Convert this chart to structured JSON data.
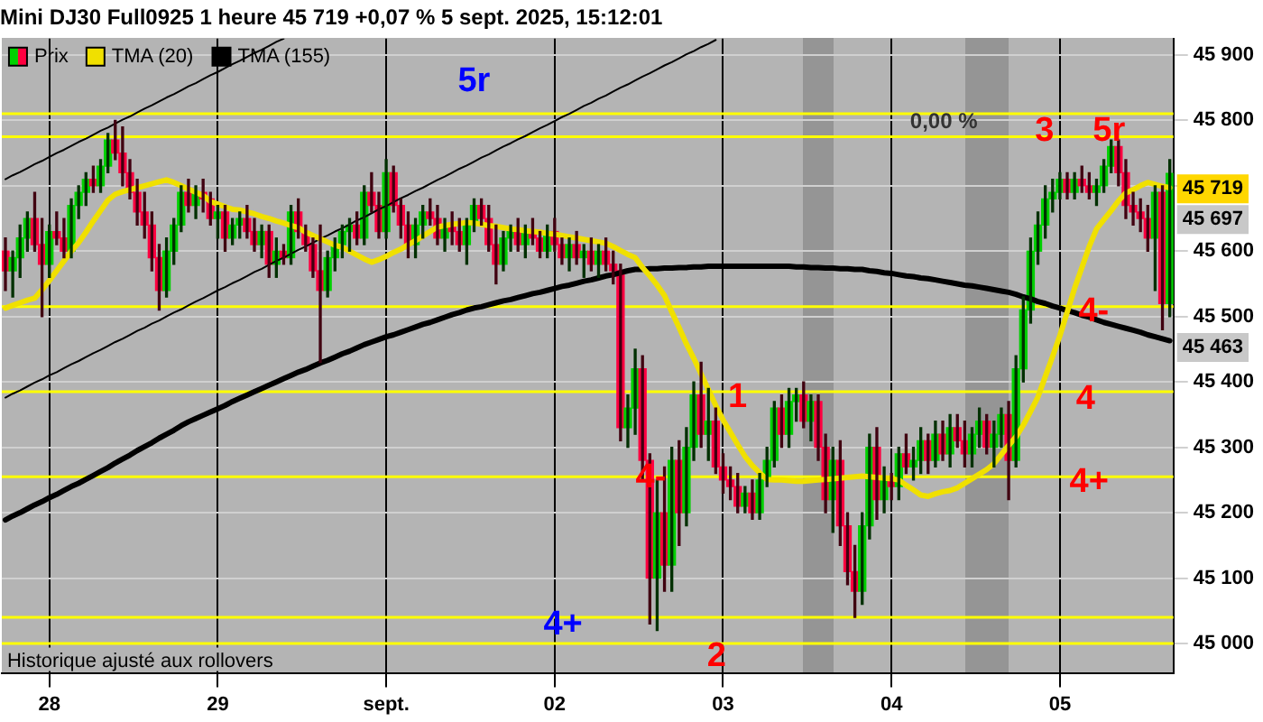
{
  "chart_data": {
    "type": "candlestick",
    "title": "Mini DJ30 Full0925 1 heure 45 719 +0,07 % 5 sept. 2025, 15:12:01",
    "categories": [
      null,
      null,
      null,
      null,
      null,
      null,
      "28",
      null,
      null,
      null,
      null,
      null,
      null,
      null,
      null,
      null,
      null,
      null,
      null,
      null,
      null,
      null,
      null,
      null,
      null,
      null,
      null,
      null,
      null,
      "29",
      null,
      null,
      null,
      null,
      null,
      null,
      null,
      null,
      null,
      null,
      null,
      null,
      null,
      null,
      null,
      null,
      null,
      null,
      null,
      null,
      null,
      null,
      "sept.",
      null,
      null,
      null,
      null,
      null,
      null,
      null,
      null,
      null,
      null,
      null,
      null,
      null,
      null,
      null,
      null,
      null,
      null,
      null,
      null,
      null,
      null,
      "02",
      null,
      null,
      null,
      null,
      null,
      null,
      null,
      null,
      null,
      null,
      null,
      null,
      null,
      null,
      null,
      null,
      null,
      null,
      null,
      null,
      null,
      null,
      "03",
      null,
      null,
      null,
      null,
      null,
      null,
      null,
      null,
      null,
      null,
      null,
      null,
      null,
      null,
      null,
      null,
      null,
      null,
      null,
      null,
      null,
      null,
      "04",
      null,
      null,
      null,
      null,
      null,
      null,
      null,
      null,
      null,
      null,
      null,
      null,
      null,
      null,
      null,
      null,
      null,
      null,
      null,
      null,
      null,
      null,
      "05",
      null,
      null,
      null,
      null,
      null,
      null,
      null,
      null,
      null,
      null,
      null,
      null,
      null,
      null,
      null
    ],
    "ylim": [
      44955,
      45925
    ],
    "yticks": [
      {
        "value": 45000,
        "label": "45 000"
      },
      {
        "value": 45100,
        "label": "45 100"
      },
      {
        "value": 45200,
        "label": "45 200"
      },
      {
        "value": 45300,
        "label": "45 300"
      },
      {
        "value": 45400,
        "label": "45 400"
      },
      {
        "value": 45500,
        "label": "45 500"
      },
      {
        "value": 45600,
        "label": "45 600"
      },
      {
        "value": 45700,
        "label": null
      },
      {
        "value": 45800,
        "label": "45 800"
      },
      {
        "value": 45900,
        "label": "45 900"
      }
    ],
    "grid": true,
    "legend": "top left",
    "marker": "none",
    "series": [
      {
        "name": "Prix",
        "ohlc": [
          [
            45600,
            45620,
            45540,
            45570
          ],
          [
            45570,
            45600,
            45530,
            45590
          ],
          [
            45590,
            45640,
            45560,
            45620
          ],
          [
            45620,
            45660,
            45600,
            45650
          ],
          [
            45650,
            45690,
            45600,
            45610
          ],
          [
            45610,
            45650,
            45500,
            45580
          ],
          [
            45580,
            45640,
            45560,
            45630
          ],
          [
            45630,
            45660,
            45610,
            45620
          ],
          [
            45620,
            45650,
            45590,
            45600
          ],
          [
            45600,
            45680,
            45590,
            45670
          ],
          [
            45670,
            45700,
            45650,
            45690
          ],
          [
            45690,
            45720,
            45670,
            45710
          ],
          [
            45710,
            45730,
            45690,
            45700
          ],
          [
            45700,
            45740,
            45690,
            45730
          ],
          [
            45730,
            45780,
            45720,
            45770
          ],
          [
            45770,
            45800,
            45740,
            45750
          ],
          [
            45750,
            45790,
            45700,
            45720
          ],
          [
            45720,
            45740,
            45680,
            45690
          ],
          [
            45690,
            45710,
            45640,
            45660
          ],
          [
            45660,
            45690,
            45620,
            45640
          ],
          [
            45640,
            45660,
            45570,
            45590
          ],
          [
            45590,
            45610,
            45510,
            45540
          ],
          [
            45540,
            45620,
            45530,
            45600
          ],
          [
            45600,
            45650,
            45580,
            45640
          ],
          [
            45640,
            45700,
            45630,
            45690
          ],
          [
            45690,
            45710,
            45660,
            45670
          ],
          [
            45670,
            45700,
            45650,
            45690
          ],
          [
            45690,
            45710,
            45660,
            45680
          ],
          [
            45680,
            45690,
            45640,
            45650
          ],
          [
            45650,
            45670,
            45620,
            45660
          ],
          [
            45660,
            45670,
            45600,
            45620
          ],
          [
            45620,
            45650,
            45610,
            45640
          ],
          [
            45640,
            45660,
            45620,
            45650
          ],
          [
            45650,
            45670,
            45620,
            45630
          ],
          [
            45630,
            45650,
            45600,
            45610
          ],
          [
            45610,
            45640,
            45590,
            45630
          ],
          [
            45630,
            45640,
            45560,
            45580
          ],
          [
            45580,
            45620,
            45560,
            45600
          ],
          [
            45600,
            45610,
            45580,
            45590
          ],
          [
            45590,
            45670,
            45580,
            45660
          ],
          [
            45660,
            45680,
            45620,
            45630
          ],
          [
            45630,
            45640,
            45600,
            45610
          ],
          [
            45610,
            45620,
            45560,
            45570
          ],
          [
            45570,
            45640,
            45430,
            45540
          ],
          [
            45540,
            45600,
            45530,
            45590
          ],
          [
            45590,
            45620,
            45570,
            45610
          ],
          [
            45610,
            45640,
            45590,
            45630
          ],
          [
            45630,
            45650,
            45600,
            45640
          ],
          [
            45640,
            45660,
            45610,
            45620
          ],
          [
            45620,
            45700,
            45610,
            45690
          ],
          [
            45690,
            45720,
            45660,
            45670
          ],
          [
            45670,
            45690,
            45620,
            45630
          ],
          [
            45630,
            45740,
            45620,
            45720
          ],
          [
            45720,
            45730,
            45660,
            45670
          ],
          [
            45670,
            45680,
            45620,
            45640
          ],
          [
            45640,
            45660,
            45590,
            45610
          ],
          [
            45610,
            45650,
            45590,
            45640
          ],
          [
            45640,
            45670,
            45620,
            45660
          ],
          [
            45660,
            45680,
            45640,
            45650
          ],
          [
            45650,
            45670,
            45610,
            45620
          ],
          [
            45620,
            45650,
            45600,
            45640
          ],
          [
            45640,
            45660,
            45610,
            45630
          ],
          [
            45630,
            45650,
            45600,
            45610
          ],
          [
            45610,
            45650,
            45580,
            45640
          ],
          [
            45640,
            45680,
            45630,
            45670
          ],
          [
            45670,
            45680,
            45640,
            45650
          ],
          [
            45650,
            45670,
            45600,
            45610
          ],
          [
            45610,
            45640,
            45550,
            45580
          ],
          [
            45580,
            45630,
            45570,
            45620
          ],
          [
            45620,
            45640,
            45600,
            45630
          ],
          [
            45630,
            45650,
            45600,
            45610
          ],
          [
            45610,
            45640,
            45590,
            45630
          ],
          [
            45630,
            45650,
            45610,
            45620
          ],
          [
            45620,
            45630,
            45590,
            45600
          ],
          [
            45600,
            45640,
            45590,
            45630
          ],
          [
            45630,
            45650,
            45600,
            45610
          ],
          [
            45610,
            45620,
            45580,
            45590
          ],
          [
            45590,
            45620,
            45570,
            45610
          ],
          [
            45610,
            45630,
            45580,
            45590
          ],
          [
            45590,
            45610,
            45560,
            45600
          ],
          [
            45600,
            45620,
            45570,
            45580
          ],
          [
            45580,
            45610,
            45560,
            45600
          ],
          [
            45600,
            45620,
            45570,
            45580
          ],
          [
            45580,
            45600,
            45550,
            45570
          ],
          [
            45570,
            45580,
            45310,
            45330
          ],
          [
            45330,
            45380,
            45300,
            45360
          ],
          [
            45360,
            45450,
            45320,
            45420
          ],
          [
            45420,
            45440,
            45250,
            45280
          ],
          [
            45280,
            45290,
            45030,
            45100
          ],
          [
            45100,
            45250,
            45020,
            45200
          ],
          [
            45200,
            45270,
            45080,
            45120
          ],
          [
            45120,
            45300,
            45080,
            45280
          ],
          [
            45280,
            45310,
            45150,
            45200
          ],
          [
            45200,
            45330,
            45180,
            45300
          ],
          [
            45300,
            45400,
            45280,
            45380
          ],
          [
            45380,
            45430,
            45300,
            45320
          ],
          [
            45320,
            45390,
            45280,
            45340
          ],
          [
            45340,
            45360,
            45260,
            45270
          ],
          [
            45270,
            45290,
            45230,
            45250
          ],
          [
            45250,
            45270,
            45220,
            45240
          ],
          [
            45240,
            45260,
            45200,
            45210
          ],
          [
            45210,
            45240,
            45200,
            45230
          ],
          [
            45230,
            45250,
            45190,
            45200
          ],
          [
            45200,
            45260,
            45190,
            45250
          ],
          [
            45250,
            45300,
            45240,
            45280
          ],
          [
            45280,
            45370,
            45270,
            45360
          ],
          [
            45360,
            45380,
            45300,
            45320
          ],
          [
            45320,
            45390,
            45300,
            45370
          ],
          [
            45370,
            45390,
            45340,
            45380
          ],
          [
            45380,
            45400,
            45330,
            45340
          ],
          [
            45340,
            45380,
            45310,
            45370
          ],
          [
            45370,
            45380,
            45280,
            45300
          ],
          [
            45300,
            45320,
            45200,
            45220
          ],
          [
            45220,
            45300,
            45170,
            45280
          ],
          [
            45280,
            45310,
            45150,
            45180
          ],
          [
            45180,
            45200,
            45090,
            45110
          ],
          [
            45110,
            45150,
            45040,
            45080
          ],
          [
            45080,
            45200,
            45060,
            45180
          ],
          [
            45180,
            45320,
            45160,
            45300
          ],
          [
            45300,
            45330,
            45190,
            45220
          ],
          [
            45220,
            45270,
            45200,
            45250
          ],
          [
            45250,
            45260,
            45220,
            45240
          ],
          [
            45240,
            45300,
            45220,
            45290
          ],
          [
            45290,
            45320,
            45260,
            45270
          ],
          [
            45270,
            45300,
            45250,
            45280
          ],
          [
            45280,
            45330,
            45260,
            45310
          ],
          [
            45310,
            45320,
            45260,
            45280
          ],
          [
            45280,
            45340,
            45270,
            45320
          ],
          [
            45320,
            45340,
            45280,
            45290
          ],
          [
            45290,
            45350,
            45270,
            45330
          ],
          [
            45330,
            45350,
            45300,
            45310
          ],
          [
            45310,
            45340,
            45270,
            45290
          ],
          [
            45290,
            45330,
            45270,
            45320
          ],
          [
            45320,
            45360,
            45300,
            45340
          ],
          [
            45340,
            45350,
            45290,
            45300
          ],
          [
            45300,
            45340,
            45270,
            45320
          ],
          [
            45320,
            45360,
            45300,
            45350
          ],
          [
            45350,
            45370,
            45220,
            45280
          ],
          [
            45280,
            45440,
            45270,
            45420
          ],
          [
            45420,
            45530,
            45400,
            45510
          ],
          [
            45510,
            45620,
            45490,
            45600
          ],
          [
            45600,
            45660,
            45580,
            45640
          ],
          [
            45640,
            45700,
            45620,
            45680
          ],
          [
            45680,
            45710,
            45660,
            45690
          ],
          [
            45690,
            45720,
            45680,
            45710
          ],
          [
            45710,
            45720,
            45680,
            45690
          ],
          [
            45690,
            45720,
            45680,
            45710
          ],
          [
            45710,
            45730,
            45690,
            45700
          ],
          [
            45700,
            45720,
            45680,
            45690
          ],
          [
            45690,
            45710,
            45670,
            45700
          ],
          [
            45700,
            45740,
            45690,
            45730
          ],
          [
            45730,
            45770,
            45720,
            45760
          ],
          [
            45760,
            45770,
            45700,
            45720
          ],
          [
            45720,
            45740,
            45650,
            45670
          ],
          [
            45670,
            45690,
            45640,
            45660
          ],
          [
            45660,
            45680,
            45630,
            45650
          ],
          [
            45650,
            45670,
            45600,
            45620
          ],
          [
            45620,
            45700,
            45540,
            45690
          ],
          [
            45690,
            45700,
            45480,
            45520
          ],
          [
            45520,
            45740,
            45500,
            45719
          ]
        ]
      },
      {
        "name": "TMA (20)",
        "type": "line",
        "color": "#f0e000",
        "values": [
          45513,
          45517,
          45521,
          45525,
          45528,
          45541,
          45555,
          45570,
          45585,
          45600,
          45613,
          45629,
          45646,
          45662,
          45678,
          45687,
          45691,
          45694,
          45697,
          45700,
          45703,
          45706,
          45709,
          45705,
          45700,
          45695,
          45690,
          45685,
          45676,
          45672,
          45668,
          45664,
          45663,
          45660,
          45657,
          45653,
          45650,
          45646,
          45643,
          45639,
          45636,
          45629,
          45624,
          45619,
          45614,
          45609,
          45606,
          45600,
          45594,
          45588,
          45583,
          45587,
          45592,
          45598,
          45603,
          45610,
          45616,
          45623,
          45630,
          45637,
          45639,
          45641,
          45642,
          45644,
          45643,
          45641,
          45639,
          45638,
          45636,
          45634,
          45633,
          45631,
          45630,
          45629,
          45627,
          45626,
          45624,
          45622,
          45620,
          45618,
          45616,
          45614,
          45612,
          45607,
          45601,
          45595,
          45590,
          45575,
          45562,
          45548,
          45532,
          45507,
          45483,
          45458,
          45436,
          45412,
          45388,
          45364,
          45342,
          45323,
          45304,
          45286,
          45272,
          45261,
          45251,
          45250,
          45250,
          45249,
          45248,
          45248,
          45249,
          45250,
          45251,
          45252,
          45253,
          45254,
          45255,
          45256,
          45255,
          45254,
          45253,
          45252,
          45250,
          45242,
          45235,
          45227,
          45225,
          45229,
          45232,
          45234,
          45238,
          45245,
          45252,
          45259,
          45266,
          45275,
          45289,
          45303,
          45316,
          45334,
          45355,
          45377,
          45408,
          45439,
          45471,
          45507,
          45543,
          45575,
          45607,
          45634,
          45648,
          45662,
          45677,
          45689,
          45694,
          45700,
          45705,
          45702,
          45699,
          45697
        ]
      },
      {
        "name": "TMA (155)",
        "type": "line",
        "color": "#000000",
        "values": [
          45189,
          45195,
          45200,
          45206,
          45212,
          45217,
          45223,
          45228,
          45234,
          45240,
          45245,
          45251,
          45257,
          45263,
          45269,
          45276,
          45282,
          45288,
          45295,
          45301,
          45307,
          45314,
          45320,
          45326,
          45333,
          45339,
          45344,
          45349,
          45354,
          45359,
          45364,
          45370,
          45375,
          45380,
          45385,
          45390,
          45395,
          45400,
          45405,
          45410,
          45415,
          45419,
          45424,
          45429,
          45433,
          45438,
          45443,
          45447,
          45452,
          45457,
          45461,
          45465,
          45469,
          45472,
          45476,
          45480,
          45484,
          45488,
          45491,
          45495,
          45499,
          45503,
          45506,
          45510,
          45513,
          45515,
          45518,
          45521,
          45524,
          45526,
          45529,
          45532,
          45535,
          45537,
          45540,
          45543,
          45546,
          45548,
          45551,
          45554,
          45556,
          45559,
          45562,
          45564,
          45567,
          45570,
          45572,
          45572,
          45573,
          45573,
          45574,
          45574,
          45575,
          45575,
          45576,
          45576,
          45577,
          45577,
          45577,
          45577,
          45577,
          45577,
          45577,
          45577,
          45577,
          45577,
          45577,
          45577,
          45576,
          45576,
          45575,
          45575,
          45574,
          45574,
          45573,
          45573,
          45572,
          45572,
          45570,
          45569,
          45567,
          45566,
          45564,
          45562,
          45561,
          45559,
          45558,
          45556,
          45554,
          45552,
          45550,
          45548,
          45547,
          45545,
          45543,
          45541,
          45539,
          45537,
          45534,
          45530,
          45527,
          45523,
          45520,
          45516,
          45513,
          45509,
          45506,
          45502,
          45499,
          45495,
          45491,
          45488,
          45485,
          45482,
          45479,
          45476,
          45472,
          45469,
          45466,
          45463
        ]
      },
      {
        "type": "line",
        "color": "#000000",
        "values": [
          45710,
          45716,
          45721,
          45727,
          45733,
          45738,
          45744,
          45750,
          45755,
          45761,
          45767,
          45772,
          45778,
          45784,
          45789,
          45795,
          45801,
          45806,
          45812,
          45818,
          45823,
          45829,
          45835,
          45840,
          45846,
          45852,
          45857,
          45863,
          45869,
          45874,
          45880,
          45886,
          45891,
          45897,
          45903,
          45908,
          45914,
          45920,
          45925,
          null,
          null,
          null,
          null,
          null,
          null,
          null,
          null,
          null,
          null,
          null,
          null,
          null,
          null,
          null,
          null,
          null,
          null,
          null,
          null,
          null,
          null,
          null,
          null,
          null,
          null,
          null,
          null,
          null,
          null,
          null,
          null,
          null,
          null,
          null,
          null,
          null,
          null,
          null,
          null,
          null,
          null,
          null,
          null,
          null,
          null,
          null,
          null,
          null,
          null,
          null,
          null,
          null,
          null,
          null,
          null,
          null,
          null,
          null,
          null,
          null,
          null,
          null,
          null,
          null,
          null,
          null,
          null,
          null,
          null,
          null,
          null,
          null,
          null,
          null,
          null,
          null,
          null,
          null,
          null,
          null,
          null,
          null,
          null,
          null,
          null,
          null,
          null,
          null,
          null,
          null,
          null,
          null,
          null,
          null,
          null,
          null,
          null,
          null,
          null,
          null,
          null,
          null,
          null,
          null,
          null,
          null,
          null,
          null,
          null,
          null,
          null,
          null,
          null,
          null,
          null,
          null,
          null,
          null,
          null,
          null
        ]
      },
      {
        "type": "line",
        "color": "#000000",
        "values": [
          45376,
          45382,
          45387,
          45393,
          45399,
          45404,
          45410,
          45415,
          45421,
          45427,
          45432,
          45438,
          45444,
          45449,
          45455,
          45461,
          45466,
          45472,
          45478,
          45483,
          45489,
          45494,
          45500,
          45506,
          45511,
          45517,
          45523,
          45528,
          45534,
          45540,
          45545,
          45551,
          45556,
          45562,
          45568,
          45573,
          45579,
          45585,
          45590,
          45596,
          45602,
          45607,
          45613,
          45619,
          45624,
          45630,
          45635,
          45641,
          45647,
          45652,
          45658,
          45664,
          45669,
          45675,
          45681,
          45686,
          45692,
          45697,
          45703,
          45709,
          45714,
          45720,
          45726,
          45731,
          45737,
          45743,
          45748,
          45754,
          45760,
          45765,
          45771,
          45776,
          45782,
          45788,
          45793,
          45799,
          45805,
          45810,
          45816,
          45822,
          45827,
          45833,
          45838,
          45844,
          45850,
          45855,
          45861,
          45867,
          45872,
          45878,
          45884,
          45889,
          45895,
          45901,
          45906,
          45912,
          45917,
          45923,
          null,
          null,
          null,
          null,
          null,
          null,
          null,
          null,
          null,
          null,
          null,
          null,
          null,
          null,
          null,
          null,
          null,
          null,
          null,
          null,
          null,
          null,
          null,
          null,
          null,
          null,
          null,
          null,
          null,
          null,
          null,
          null,
          null,
          null,
          null,
          null,
          null,
          null,
          null,
          null,
          null,
          null,
          null,
          null,
          null,
          null,
          null,
          null,
          null,
          null,
          null,
          null,
          null,
          null,
          null,
          null,
          null,
          null,
          null,
          null,
          null,
          null
        ]
      }
    ],
    "ref_lines": [
      {
        "axis": "y",
        "value": 45810,
        "color": "#ffff00"
      },
      {
        "axis": "y",
        "value": 45775,
        "color": "#ffff00"
      },
      {
        "axis": "y",
        "value": 45515,
        "color": "#ffff00"
      },
      {
        "axis": "y",
        "value": 45385,
        "color": "#ffff00"
      },
      {
        "axis": "y",
        "value": 45255,
        "color": "#ffff00"
      },
      {
        "axis": "y",
        "value": 45040,
        "color": "#ffff00"
      },
      {
        "axis": "y",
        "value": 45000,
        "color": "#ffff00"
      }
    ],
    "annotations": [
      "5r",
      "3",
      "5r",
      "4-",
      "4",
      "4+",
      "1",
      "4-",
      "2",
      "4+",
      "0,00 %",
      "Historique ajusté aux rollovers",
      "45 719",
      "45 697",
      "45 463"
    ]
  }
}
